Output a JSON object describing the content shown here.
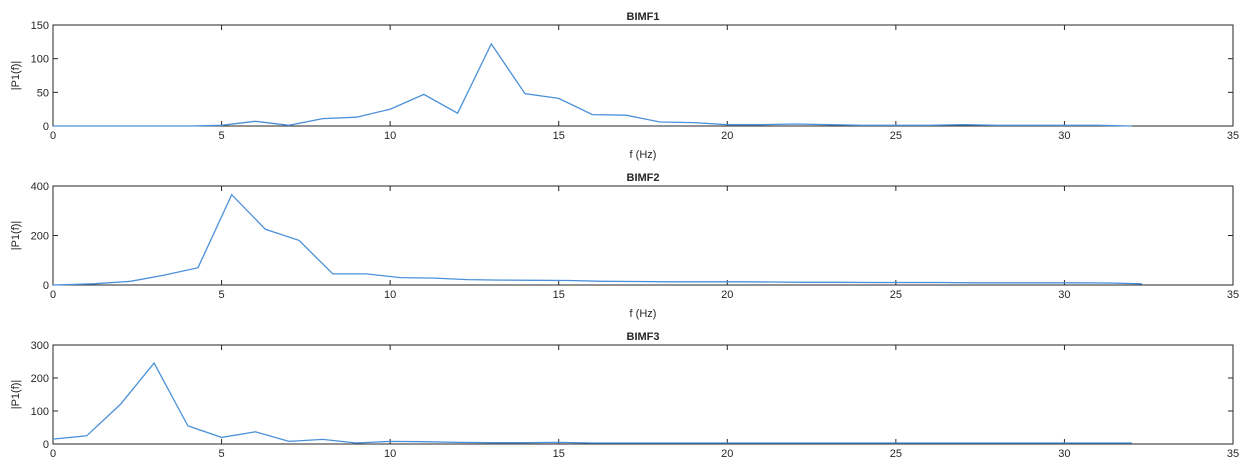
{
  "chart_data": [
    {
      "type": "line",
      "title": "BIMF1",
      "xlabel": "f (Hz)",
      "ylabel": "|P1(f)|",
      "xlim": [
        0,
        35
      ],
      "ylim": [
        0,
        150
      ],
      "xticks": [
        0,
        5,
        10,
        15,
        20,
        25,
        30,
        35
      ],
      "yticks": [
        0,
        50,
        100,
        150
      ],
      "grid": false,
      "series": [
        {
          "color": "#4a90d9",
          "x": [
            0,
            1,
            2,
            3,
            4,
            5,
            6,
            7,
            8,
            9,
            10,
            11,
            12,
            13,
            14,
            15,
            16,
            17,
            18,
            19,
            20,
            21,
            22,
            23,
            24,
            25,
            26,
            27,
            28,
            29,
            30,
            31,
            32
          ],
          "y": [
            0,
            0,
            0,
            0,
            0,
            1,
            7,
            1,
            11,
            13,
            25,
            47,
            19,
            122,
            48,
            41,
            17,
            16,
            6,
            5,
            2,
            2,
            3,
            2,
            1,
            1,
            1,
            2,
            1,
            1,
            1,
            1,
            0
          ]
        }
      ]
    },
    {
      "type": "line",
      "title": "BIMF2",
      "xlabel": "f (Hz)",
      "ylabel": "|P1(f)|",
      "xlim": [
        0,
        35
      ],
      "ylim": [
        0,
        400
      ],
      "xticks": [
        0,
        5,
        10,
        15,
        20,
        25,
        30,
        35
      ],
      "yticks": [
        0,
        200,
        400
      ],
      "grid": false,
      "series": [
        {
          "color": "#4a90d9",
          "x": [
            0,
            1.2,
            2.3,
            3.3,
            4.3,
            5.3,
            6.3,
            7.3,
            8.3,
            9.3,
            10.3,
            11.3,
            12.3,
            13.3,
            14.3,
            15.3,
            16.3,
            17.3,
            18.3,
            19.3,
            20.3,
            21.3,
            22.3,
            23.3,
            24.3,
            25.3,
            26.3,
            27.3,
            28.3,
            29.3,
            30.3,
            31.3,
            32.3
          ],
          "y": [
            0,
            5,
            15,
            40,
            70,
            365,
            225,
            180,
            45,
            45,
            30,
            28,
            22,
            20,
            19,
            18,
            15,
            14,
            13,
            13,
            13,
            12,
            11,
            11,
            10,
            10,
            10,
            9,
            9,
            9,
            9,
            8,
            5
          ]
        }
      ]
    },
    {
      "type": "line",
      "title": "BIMF3",
      "xlabel": "",
      "ylabel": "|P1(f)|",
      "xlim": [
        0,
        35
      ],
      "ylim": [
        0,
        300
      ],
      "xticks": [
        0,
        5,
        10,
        15,
        20,
        25,
        30,
        35
      ],
      "yticks": [
        0,
        100,
        200,
        300
      ],
      "grid": false,
      "series": [
        {
          "color": "#4a90d9",
          "x": [
            0,
            1,
            2,
            3,
            4,
            5,
            6,
            7,
            8,
            9,
            10,
            11,
            12,
            13,
            14,
            15,
            16,
            17,
            18,
            19,
            20,
            21,
            22,
            23,
            24,
            25,
            26,
            27,
            28,
            29,
            30,
            31,
            32
          ],
          "y": [
            15,
            25,
            120,
            245,
            55,
            20,
            37,
            8,
            14,
            3,
            8,
            7,
            5,
            4,
            4,
            5,
            3,
            3,
            3,
            3,
            3,
            3,
            3,
            3,
            3,
            3,
            3,
            3,
            3,
            3,
            3,
            3,
            3
          ]
        }
      ]
    }
  ]
}
